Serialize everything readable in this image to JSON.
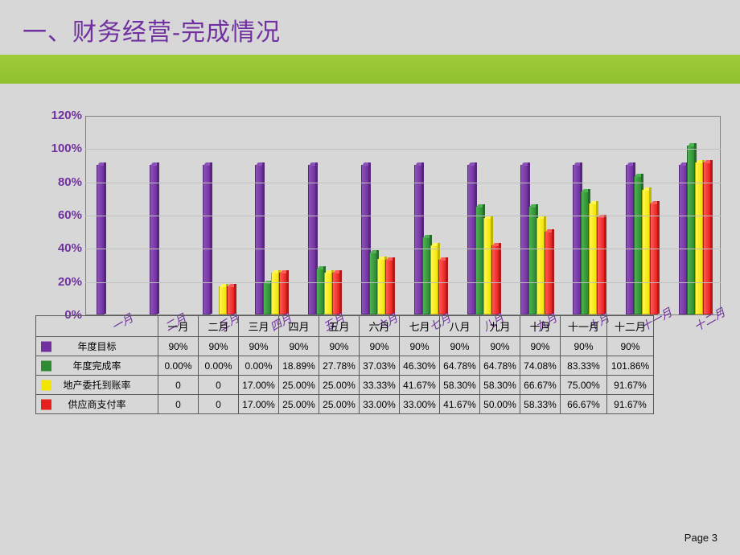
{
  "slide": {
    "title": "一、财务经营-完成情况",
    "footer": "Page 3"
  },
  "chart": {
    "type": "bar",
    "ymin": 0,
    "ymax": 120,
    "ytick_step": 20,
    "y_ticks": [
      0,
      20,
      40,
      60,
      80,
      100,
      120
    ],
    "month_labels": [
      "一月",
      "二月",
      "三月",
      "四月",
      "五月",
      "六月",
      "七月",
      "八月",
      "九月",
      "十月",
      "十一月",
      "十二月"
    ],
    "cn_rotated_labels": [
      "一月",
      "二月",
      "三月",
      "四月",
      "五月",
      "六月",
      "七月",
      "八月",
      "九月",
      "十月",
      "十一月",
      "十二月"
    ],
    "series": [
      {
        "name": "年度目标",
        "color": "#7030a0",
        "light": "#8b53b8",
        "values": [
          90,
          90,
          90,
          90,
          90,
          90,
          90,
          90,
          90,
          90,
          90,
          90
        ],
        "disp": [
          "90%",
          "90%",
          "90%",
          "90%",
          "90%",
          "90%",
          "90%",
          "90%",
          "90%",
          "90%",
          "90%",
          "90%"
        ]
      },
      {
        "name": "年度完成率",
        "color": "#2e8b32",
        "light": "#4db352",
        "values": [
          0,
          0,
          0,
          18.89,
          27.78,
          37.03,
          46.3,
          64.78,
          64.78,
          74.08,
          83.33,
          101.86
        ],
        "disp": [
          "0.00%",
          "0.00%",
          "0.00%",
          "18.89%",
          "27.78%",
          "37.03%",
          "46.30%",
          "64.78%",
          "64.78%",
          "74.08%",
          "83.33%",
          "101.86%"
        ]
      },
      {
        "name": "地产委托到账率",
        "color": "#f2e500",
        "light": "#fff654",
        "values": [
          0,
          0,
          17,
          25,
          25,
          33.33,
          41.67,
          58.3,
          58.3,
          66.67,
          75.0,
          91.67
        ],
        "disp": [
          "0",
          "0",
          "17.00%",
          "25.00%",
          "25.00%",
          "33.33%",
          "41.67%",
          "58.30%",
          "58.30%",
          "66.67%",
          "75.00%",
          "91.67%"
        ]
      },
      {
        "name": "供应商支付率",
        "color": "#e8201d",
        "light": "#ff5b57",
        "values": [
          0,
          0,
          17,
          25,
          25,
          33,
          33,
          41.67,
          50,
          58.33,
          66.67,
          91.67
        ],
        "disp": [
          "0",
          "0",
          "17.00%",
          "25.00%",
          "25.00%",
          "33.00%",
          "33.00%",
          "41.67%",
          "50.00%",
          "58.33%",
          "66.67%",
          "91.67%"
        ]
      }
    ],
    "colors": {
      "title": "#7030a0",
      "grid": "#bfbfbf",
      "axis": "#7f7f7f"
    }
  }
}
